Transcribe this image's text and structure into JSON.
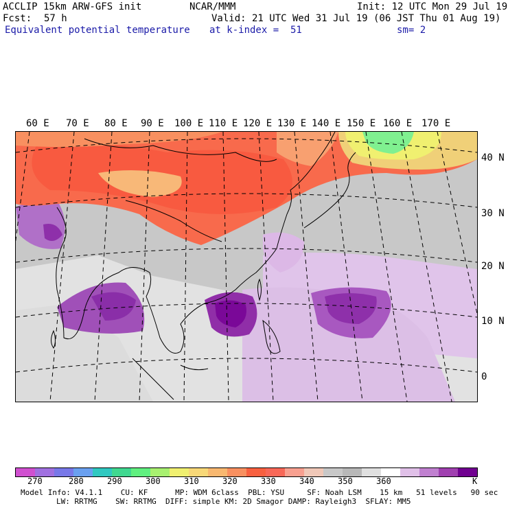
{
  "header": {
    "model": "ACCLIP 15km ARW-GFS init",
    "org": "NCAR/MMM",
    "init": "Init: 12 UTC Mon 29 Jul 19",
    "fcst_label": "Fcst:",
    "fcst_value": "57 h",
    "valid": "Valid: 21 UTC Wed 31 Jul 19 (06 JST Thu 01 Aug 19)",
    "field": "Equivalent potential temperature",
    "level": "at k-index =  51",
    "smoothing": "sm= 2"
  },
  "lon_labels": [
    "60 E",
    "70 E",
    "80 E",
    "90 E",
    "100 E",
    "110 E",
    "120 E",
    "130 E",
    "140 E",
    "150 E",
    "160 E",
    "170 E"
  ],
  "lat_labels": [
    "40 N",
    "30 N",
    "20 N",
    "10 N",
    "0"
  ],
  "colorbar": {
    "colors": [
      "#d050d0",
      "#a070e0",
      "#7878e8",
      "#6aa0f0",
      "#30c8c0",
      "#40d890",
      "#60f080",
      "#a8f070",
      "#f0f070",
      "#f8d878",
      "#f8b870",
      "#f89060",
      "#f86040",
      "#f86858",
      "#f8a090",
      "#f0c8b8",
      "#c8c8c8",
      "#b8b8b8",
      "#e0e0e0",
      "#ffffff",
      "#e0c0e8",
      "#c080d0",
      "#a040b0",
      "#700090"
    ],
    "ticks": [
      "270",
      "280",
      "290",
      "300",
      "310",
      "320",
      "330",
      "340",
      "350",
      "360"
    ],
    "unit": "K"
  },
  "footer": {
    "line1": "Model Info: V4.1.1    CU: KF      MP: WDM 6class  PBL: YSU     SF: Noah LSM    15 km   51 levels   90 sec",
    "line2": "LW: RRTMG    SW: RRTMG  DIFF: simple KM: 2D Smagor DAMP: Rayleigh3  SFLAY: MM5"
  }
}
